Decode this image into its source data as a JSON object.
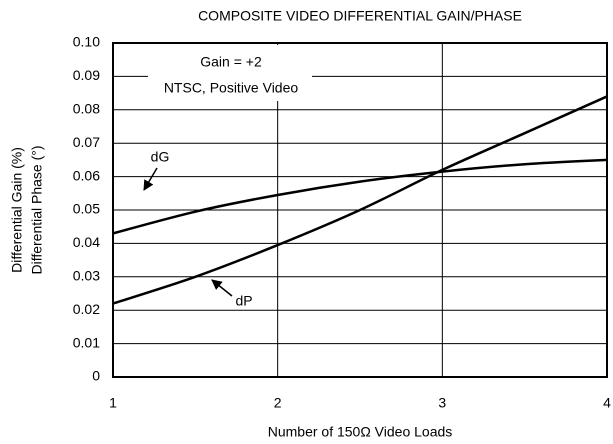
{
  "chart_data": {
    "type": "line",
    "title": "COMPOSITE VIDEO DIFFERENTIAL GAIN/PHASE",
    "xlabel": "Number of 150Ω Video Loads",
    "ylabel": [
      "Differential Gain (%)",
      "Differential Phase (°)"
    ],
    "annotations": [
      "Gain = +2",
      "NTSC, Positive Video"
    ],
    "x": [
      1,
      1.5,
      2,
      2.5,
      3,
      3.5,
      4
    ],
    "series": [
      {
        "name": "dG",
        "color": "#000000",
        "values": [
          0.043,
          0.0495,
          0.0545,
          0.0585,
          0.0615,
          0.0637,
          0.065
        ]
      },
      {
        "name": "dP",
        "color": "#000000",
        "values": [
          0.022,
          0.03,
          0.0395,
          0.05,
          0.062,
          0.073,
          0.084
        ]
      }
    ],
    "xlim": [
      1,
      4
    ],
    "xticks": [
      1,
      2,
      3,
      4
    ],
    "ylim": [
      0,
      0.1
    ],
    "yticks": [
      0,
      0.01,
      0.02,
      0.03,
      0.04,
      0.05,
      0.06,
      0.07,
      0.08,
      0.09,
      {
        "value": 0.1,
        "label": "0.10"
      }
    ],
    "grid": true
  }
}
